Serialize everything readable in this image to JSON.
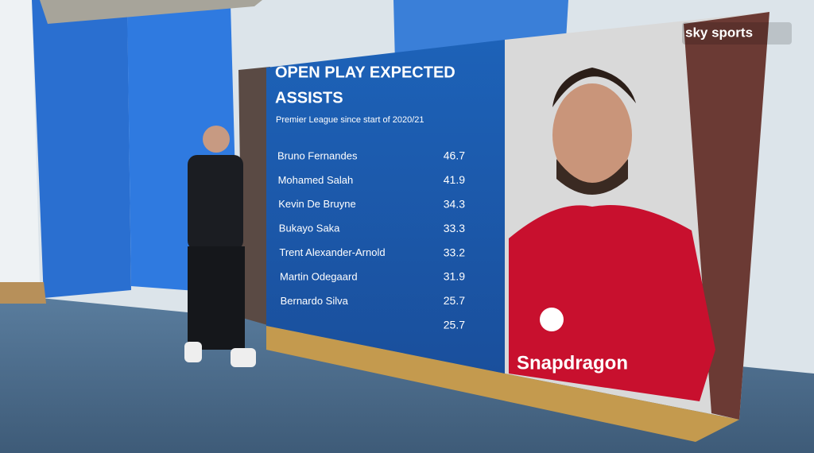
{
  "logo": "sky sports",
  "graphic": {
    "title_lines": [
      "OPEN PLAY EXPECTED",
      "ASSISTS"
    ],
    "subtitle": "Premier League since start of 2020/21",
    "rows": [
      [
        "Bruno Fernandes",
        46.7
      ],
      [
        "Mohamed Salah",
        41.9
      ],
      [
        "Kevin De Bruyne",
        34.3
      ],
      [
        "Bukayo Saka",
        33.3
      ],
      [
        "Trent Alexander-Arnold",
        33.2
      ],
      [
        "Martin Odegaard",
        31.9
      ],
      [
        "Bernardo Silva",
        25.7
      ],
      [
        null,
        25.7
      ]
    ],
    "shirt_sponsor": "Snapdragon"
  }
}
